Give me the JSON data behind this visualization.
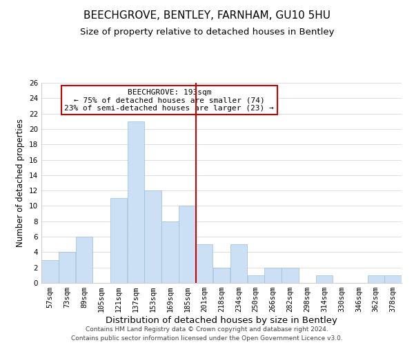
{
  "title": "BEECHGROVE, BENTLEY, FARNHAM, GU10 5HU",
  "subtitle": "Size of property relative to detached houses in Bentley",
  "xlabel": "Distribution of detached houses by size in Bentley",
  "ylabel": "Number of detached properties",
  "bin_labels": [
    "57sqm",
    "73sqm",
    "89sqm",
    "105sqm",
    "121sqm",
    "137sqm",
    "153sqm",
    "169sqm",
    "185sqm",
    "201sqm",
    "218sqm",
    "234sqm",
    "250sqm",
    "266sqm",
    "282sqm",
    "298sqm",
    "314sqm",
    "330sqm",
    "346sqm",
    "362sqm",
    "378sqm"
  ],
  "bar_values": [
    3,
    4,
    6,
    0,
    11,
    21,
    12,
    8,
    10,
    5,
    2,
    5,
    1,
    2,
    2,
    0,
    1,
    0,
    0,
    1,
    1
  ],
  "bar_color": "#cce0f5",
  "bar_edge_color": "#9bbdd9",
  "vline_x": 8.5,
  "vline_color": "#cc0000",
  "ylim": [
    0,
    26
  ],
  "yticks": [
    0,
    2,
    4,
    6,
    8,
    10,
    12,
    14,
    16,
    18,
    20,
    22,
    24,
    26
  ],
  "annotation_title": "BEECHGROVE: 193sqm",
  "annotation_line1": "← 75% of detached houses are smaller (74)",
  "annotation_line2": "23% of semi-detached houses are larger (23) →",
  "annotation_box_edge": "#cc0000",
  "footer_line1": "Contains HM Land Registry data © Crown copyright and database right 2024.",
  "footer_line2": "Contains public sector information licensed under the Open Government Licence v3.0.",
  "title_fontsize": 11,
  "subtitle_fontsize": 9.5,
  "xlabel_fontsize": 9.5,
  "ylabel_fontsize": 8.5,
  "tick_fontsize": 7.5,
  "annotation_fontsize": 8,
  "footer_fontsize": 6.5,
  "grid_color": "#d8d8d8"
}
